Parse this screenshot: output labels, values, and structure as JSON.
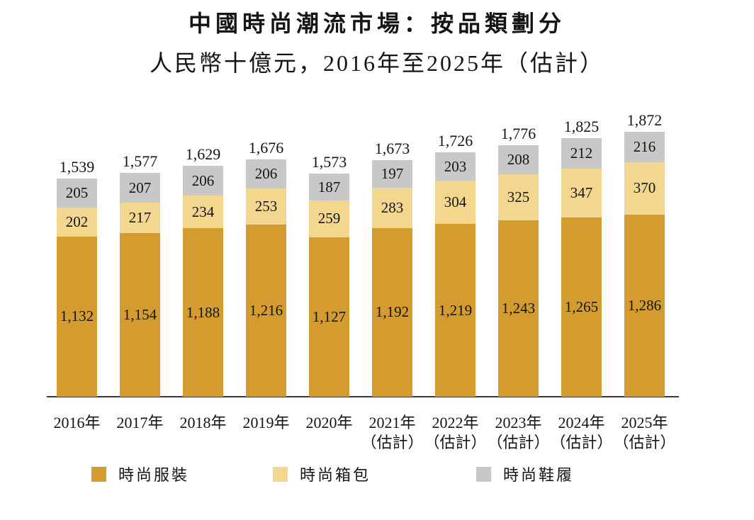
{
  "title": "中國時尚潮流市場：按品類劃分",
  "subtitle": "人民幣十億元，2016年至2025年（估計）",
  "chart_data": {
    "type": "bar",
    "stacked": true,
    "title": "中國時尚潮流市場：按品類劃分",
    "subtitle": "人民幣十億元，2016年至2025年（估計）",
    "unit": "人民幣十億元",
    "categories": [
      {
        "label": "2016年",
        "sublabel": ""
      },
      {
        "label": "2017年",
        "sublabel": ""
      },
      {
        "label": "2018年",
        "sublabel": ""
      },
      {
        "label": "2019年",
        "sublabel": ""
      },
      {
        "label": "2020年",
        "sublabel": ""
      },
      {
        "label": "2021年",
        "sublabel": "（估計）"
      },
      {
        "label": "2022年",
        "sublabel": "（估計）"
      },
      {
        "label": "2023年",
        "sublabel": "（估計）"
      },
      {
        "label": "2024年",
        "sublabel": "（估計）"
      },
      {
        "label": "2025年",
        "sublabel": "（估計）"
      }
    ],
    "series": [
      {
        "name": "時尚服裝",
        "color": "#d49c2e",
        "values": [
          1132,
          1154,
          1188,
          1216,
          1127,
          1192,
          1219,
          1243,
          1265,
          1286
        ]
      },
      {
        "name": "時尚箱包",
        "color": "#f4d78e",
        "values": [
          202,
          217,
          234,
          253,
          259,
          283,
          304,
          325,
          347,
          370
        ]
      },
      {
        "name": "時尚鞋履",
        "color": "#c8c8c8",
        "values": [
          205,
          207,
          206,
          206,
          187,
          197,
          203,
          208,
          212,
          216
        ]
      }
    ],
    "totals": [
      1539,
      1577,
      1629,
      1676,
      1573,
      1673,
      1726,
      1776,
      1825,
      1872
    ],
    "legend_position": "bottom",
    "grid": false,
    "y_axis_shown": false,
    "axis_line_color": "#3a3a3a",
    "text_color": "#151515"
  }
}
